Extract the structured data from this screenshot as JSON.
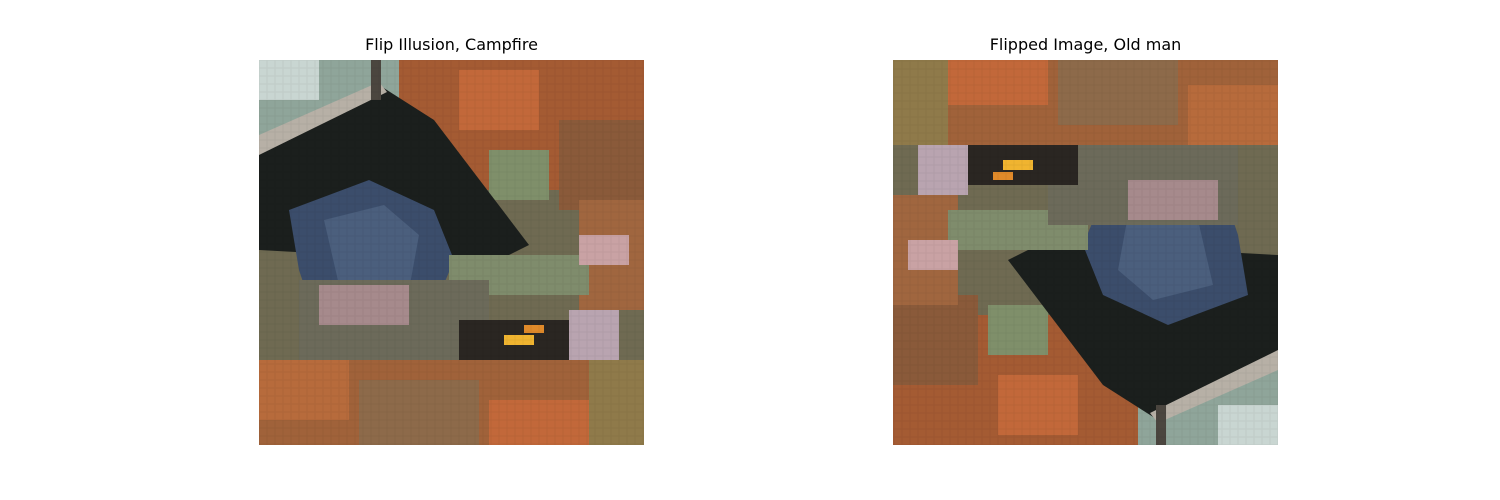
{
  "figures": [
    {
      "title": "Flip Illusion, Campfire",
      "orientation": "upright"
    },
    {
      "title": "Flipped Image, Old man",
      "orientation": "rotated-180"
    }
  ],
  "palette": {
    "tent_dark": "#1b1f1d",
    "tent_blue": "#3b4d6b",
    "autumn_orange": "#c2683a",
    "foliage_green": "#6f8a5c",
    "sky_pale": "#c9d6d2",
    "fire_yellow": "#f0b430",
    "pink_rock": "#c9a2a4"
  }
}
